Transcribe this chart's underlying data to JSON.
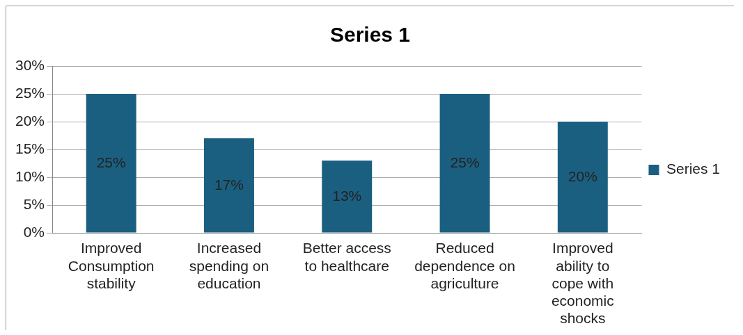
{
  "chart_data": {
    "type": "bar",
    "title": "Series 1",
    "categories": [
      "Improved Consumption stability",
      "Increased spending on education",
      "Better access to healthcare",
      "Reduced dependence on agriculture",
      "Improved ability to cope with economic shocks"
    ],
    "series": [
      {
        "name": "Series 1",
        "color": "#1b5f80",
        "values": [
          25,
          17,
          13,
          25,
          20
        ],
        "value_labels": [
          "25%",
          "17%",
          "13%",
          "25%",
          "20%"
        ]
      }
    ],
    "ylim": [
      0,
      30
    ],
    "yticks": [
      {
        "value": 0,
        "label": "0%"
      },
      {
        "value": 5,
        "label": "5%"
      },
      {
        "value": 10,
        "label": "10%"
      },
      {
        "value": 15,
        "label": "15%"
      },
      {
        "value": 20,
        "label": "20%"
      },
      {
        "value": 25,
        "label": "25%"
      },
      {
        "value": 30,
        "label": "30%"
      }
    ],
    "grid": "y",
    "legend": "right"
  }
}
